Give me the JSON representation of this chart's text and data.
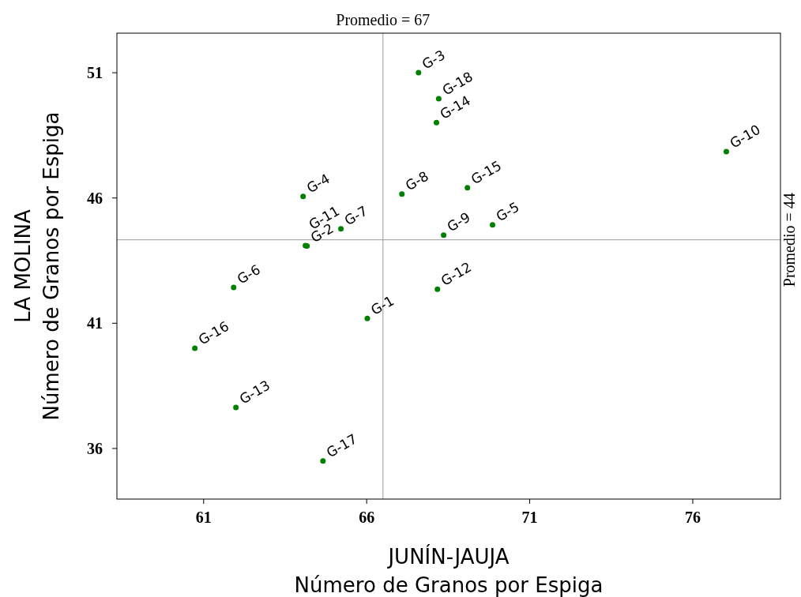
{
  "chart_data": {
    "type": "scatter",
    "xlabel": "JUNÍN-JAUJA\nNúmero de Granos por Espiga",
    "ylabel": "LA MOLINA\nNúmero de Granos por Espiga",
    "x": [
      66.02,
      64.17,
      67.59,
      64.05,
      69.86,
      61.92,
      65.21,
      67.08,
      68.36,
      77.03,
      64.12,
      68.17,
      61.99,
      68.14,
      69.09,
      60.73,
      64.66,
      68.21
    ],
    "series": [
      {
        "color": "#008000",
        "values": [
          41.19,
          44.08,
          51.0,
          46.06,
          44.93,
          42.43,
          44.77,
          46.16,
          44.52,
          47.85,
          44.1,
          42.36,
          37.64,
          49.01,
          46.41,
          40.0,
          35.5,
          49.96
        ]
      }
    ],
    "marker": "circle",
    "grid": false,
    "xlim": [
      58.34,
      78.69
    ],
    "ylim": [
      33.98,
      52.58
    ],
    "xticks": [
      61,
      66,
      71,
      76
    ],
    "yticks": [
      36,
      41,
      46,
      51
    ],
    "ref_lines": [
      {
        "axis": "x",
        "value": 66.5,
        "label": "Promedio = 67",
        "color": "#999999"
      },
      {
        "axis": "y",
        "value": 44.33,
        "label": "Promedio = 44",
        "color": "#999999"
      }
    ],
    "annotations": [
      {
        "text": "G-1",
        "x": 66.02,
        "y": 41.19
      },
      {
        "text": "G-2",
        "x": 64.17,
        "y": 44.08
      },
      {
        "text": "G-3",
        "x": 67.59,
        "y": 51.0
      },
      {
        "text": "G-4",
        "x": 64.05,
        "y": 46.06
      },
      {
        "text": "G-5",
        "x": 69.86,
        "y": 44.93
      },
      {
        "text": "G-6",
        "x": 61.92,
        "y": 42.43
      },
      {
        "text": "G-7",
        "x": 65.21,
        "y": 44.77
      },
      {
        "text": "G-8",
        "x": 67.08,
        "y": 46.16
      },
      {
        "text": "G-9",
        "x": 68.36,
        "y": 44.52
      },
      {
        "text": "G-10",
        "x": 77.03,
        "y": 47.85
      },
      {
        "text": "G-11",
        "x": 64.12,
        "y": 44.1
      },
      {
        "text": "G-12",
        "x": 68.17,
        "y": 42.36
      },
      {
        "text": "G-13",
        "x": 61.99,
        "y": 37.64
      },
      {
        "text": "G-14",
        "x": 68.14,
        "y": 49.01
      },
      {
        "text": "G-15",
        "x": 69.09,
        "y": 46.41
      },
      {
        "text": "G-16",
        "x": 60.73,
        "y": 40.0
      },
      {
        "text": "G-17",
        "x": 64.66,
        "y": 35.5
      },
      {
        "text": "G-18",
        "x": 68.21,
        "y": 49.96
      }
    ]
  }
}
